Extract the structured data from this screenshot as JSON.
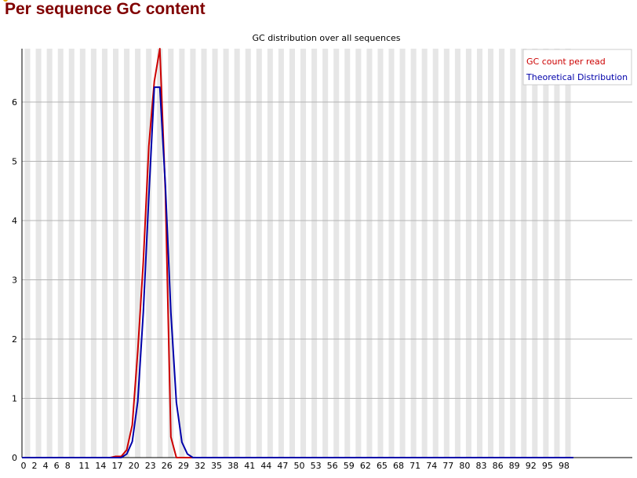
{
  "header": {
    "title": "Per sequence GC content"
  },
  "colors": {
    "gc_series": "#cc0000",
    "theoretical_series": "#0000aa",
    "stripe": "#e6e6e6",
    "gridline": "#b4b4b4",
    "heading": "#800000"
  },
  "chart_data": {
    "type": "line",
    "title": "GC distribution over all sequences",
    "xlabel": "",
    "ylabel": "",
    "xlim": [
      0,
      100
    ],
    "ylim": [
      0,
      6.9
    ],
    "grid": true,
    "legend_position": "top-right",
    "x_tick_labels": [
      "0",
      "2",
      "4",
      "6",
      "8",
      "11",
      "14",
      "17",
      "20",
      "23",
      "26",
      "29",
      "32",
      "35",
      "38",
      "41",
      "44",
      "47",
      "50",
      "53",
      "56",
      "59",
      "62",
      "65",
      "68",
      "71",
      "74",
      "77",
      "80",
      "83",
      "86",
      "89",
      "92",
      "95",
      "98"
    ],
    "y_tick_labels": [
      "0",
      "1",
      "2",
      "3",
      "4",
      "5",
      "6"
    ],
    "x": [
      0,
      1,
      2,
      3,
      4,
      5,
      6,
      7,
      8,
      9,
      10,
      11,
      12,
      13,
      14,
      15,
      16,
      17,
      18,
      19,
      20,
      21,
      22,
      23,
      24,
      25,
      26,
      27,
      28,
      29,
      30,
      31,
      32,
      33,
      34,
      35,
      36,
      37,
      38,
      39,
      40,
      41,
      42,
      43,
      44,
      45,
      46,
      47,
      48,
      49,
      50,
      51,
      52,
      53,
      54,
      55,
      56,
      57,
      58,
      59,
      60,
      61,
      62,
      63,
      64,
      65,
      66,
      67,
      68,
      69,
      70,
      71,
      72,
      73,
      74,
      75,
      76,
      77,
      78,
      79,
      80,
      81,
      82,
      83,
      84,
      85,
      86,
      87,
      88,
      89,
      90,
      91,
      92,
      93,
      94,
      95,
      96,
      97,
      98,
      99,
      100
    ],
    "series": [
      {
        "name": "GC count per read",
        "color": "#cc0000",
        "values": [
          0,
          0,
          0,
          0,
          0,
          0,
          0,
          0,
          0,
          0,
          0,
          0,
          0,
          0,
          0,
          0,
          0,
          0.02,
          0.02,
          0.13,
          0.55,
          1.8,
          3.3,
          5.25,
          6.35,
          6.9,
          4.5,
          0.35,
          0,
          0,
          0,
          0,
          0,
          0,
          0,
          0,
          0,
          0,
          0,
          0,
          0,
          0,
          0,
          0,
          0,
          0,
          0,
          0,
          0,
          0,
          0,
          0,
          0,
          0,
          0,
          0,
          0,
          0,
          0,
          0,
          0,
          0,
          0,
          0,
          0,
          0,
          0,
          0,
          0,
          0,
          0,
          0,
          0,
          0,
          0,
          0,
          0,
          0,
          0,
          0,
          0,
          0,
          0,
          0,
          0,
          0,
          0,
          0,
          0,
          0,
          0,
          0,
          0,
          0,
          0,
          0,
          0,
          0,
          0,
          0,
          0
        ]
      },
      {
        "name": "Theoretical Distribution",
        "color": "#0000aa",
        "values": [
          0,
          0,
          0,
          0,
          0,
          0,
          0,
          0,
          0,
          0,
          0,
          0,
          0,
          0,
          0,
          0,
          0,
          0,
          0,
          0.06,
          0.27,
          0.95,
          2.45,
          4.4,
          6.25,
          6.25,
          4.6,
          2.45,
          0.93,
          0.26,
          0.06,
          0,
          0,
          0,
          0,
          0,
          0,
          0,
          0,
          0,
          0,
          0,
          0,
          0,
          0,
          0,
          0,
          0,
          0,
          0,
          0,
          0,
          0,
          0,
          0,
          0,
          0,
          0,
          0,
          0,
          0,
          0,
          0,
          0,
          0,
          0,
          0,
          0,
          0,
          0,
          0,
          0,
          0,
          0,
          0,
          0,
          0,
          0,
          0,
          0,
          0,
          0,
          0,
          0,
          0,
          0,
          0,
          0,
          0,
          0,
          0,
          0,
          0,
          0,
          0,
          0,
          0,
          0,
          0,
          0,
          0
        ]
      }
    ]
  }
}
